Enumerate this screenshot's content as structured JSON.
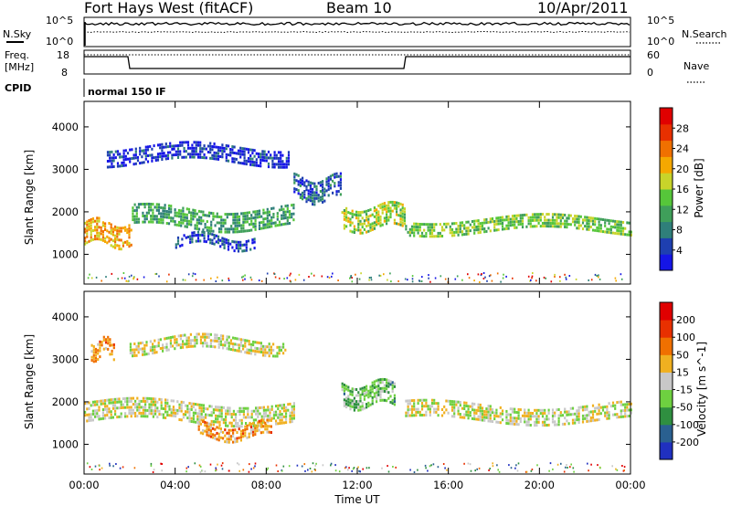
{
  "header": {
    "radar": "Fort Hays West (fitACF)",
    "beam": "Beam 10",
    "date": "10/Apr/2011"
  },
  "top_panels": {
    "nsky_label": "N.Sky",
    "nsearch_label": "N.Search",
    "nsky_ticks": [
      "10^5",
      "10^0"
    ],
    "nsearch_ticks": [
      "10^5",
      "10^0"
    ],
    "freq_label": "Freq.",
    "freq_unit": "[MHz]",
    "freq_ticks": [
      "18",
      "8"
    ],
    "nave_label": "Nave",
    "nave_ticks": [
      "60",
      "0"
    ],
    "cpid_label": "CPID",
    "cpid_value": "normal 150 IF"
  },
  "chart_data": [
    {
      "type": "heatmap",
      "name": "power",
      "ylabel": "Slant Range [km]",
      "yticks": [
        "1000",
        "2000",
        "3000",
        "4000"
      ],
      "ylim": [
        300,
        4600
      ],
      "x_range_hours": [
        0,
        24
      ],
      "colorbar": {
        "label": "Power [dB]",
        "ticks": [
          "4",
          "8",
          "12",
          "16",
          "20",
          "24",
          "28"
        ],
        "colors": [
          "#1515e6",
          "#1e3fb0",
          "#2f7f7a",
          "#3f9f5a",
          "#56c63a",
          "#c8d42a",
          "#f5a800",
          "#f07000",
          "#e83000",
          "#e00000"
        ]
      },
      "bands": [
        {
          "t0": 0.0,
          "t1": 2.1,
          "r_center": 1550,
          "r_width": 550,
          "level": 0.65
        },
        {
          "t0": 2.1,
          "t1": 9.2,
          "r_center": 1900,
          "r_width": 450,
          "level": 0.35
        },
        {
          "t0": 9.2,
          "t1": 11.3,
          "r_center": 2600,
          "r_width": 550,
          "level": 0.2
        },
        {
          "t0": 11.3,
          "t1": 14.1,
          "r_center": 1900,
          "r_width": 500,
          "level": 0.5
        },
        {
          "t0": 14.1,
          "t1": 24.0,
          "r_center": 1750,
          "r_width": 350,
          "level": 0.45
        },
        {
          "t0": 1.0,
          "t1": 9.0,
          "r_center": 3400,
          "r_width": 400,
          "level": 0.1
        },
        {
          "t0": 4.0,
          "t1": 7.5,
          "r_center": 1350,
          "r_width": 250,
          "level": 0.15
        }
      ]
    },
    {
      "type": "heatmap",
      "name": "velocity",
      "ylabel": "Slant Range [km]",
      "yticks": [
        "1000",
        "2000",
        "3000",
        "4000"
      ],
      "ylim": [
        300,
        4600
      ],
      "x_range_hours": [
        0,
        24
      ],
      "xticks": [
        "00:00",
        "04:00",
        "08:00",
        "12:00",
        "16:00",
        "20:00",
        "00:00"
      ],
      "xlabel": "Time UT",
      "colorbar": {
        "label": "Velocity [m s^-1]",
        "ticks": [
          "200",
          "100",
          "50",
          "15",
          "-15",
          "-50",
          "-100",
          "-200"
        ],
        "colors": [
          "#2030c0",
          "#2a6090",
          "#2f8f40",
          "#6ed040",
          "#c8c8c8",
          "#f0b020",
          "#f07000",
          "#e83000",
          "#e00000"
        ]
      },
      "bands": [
        {
          "t0": 0.0,
          "t1": 9.2,
          "r_center": 1800,
          "r_width": 450,
          "level": 0.5
        },
        {
          "t0": 14.1,
          "t1": 24.0,
          "r_center": 1800,
          "r_width": 400,
          "level": 0.5
        },
        {
          "t0": 5.0,
          "t1": 8.2,
          "r_center": 1350,
          "r_width": 300,
          "level": 0.66
        },
        {
          "t0": 11.3,
          "t1": 13.6,
          "r_center": 2200,
          "r_width": 500,
          "level": 0.36
        },
        {
          "t0": 0.3,
          "t1": 1.3,
          "r_center": 3300,
          "r_width": 400,
          "level": 0.66
        },
        {
          "t0": 2.0,
          "t1": 8.8,
          "r_center": 3400,
          "r_width": 350,
          "level": 0.5
        }
      ]
    }
  ]
}
